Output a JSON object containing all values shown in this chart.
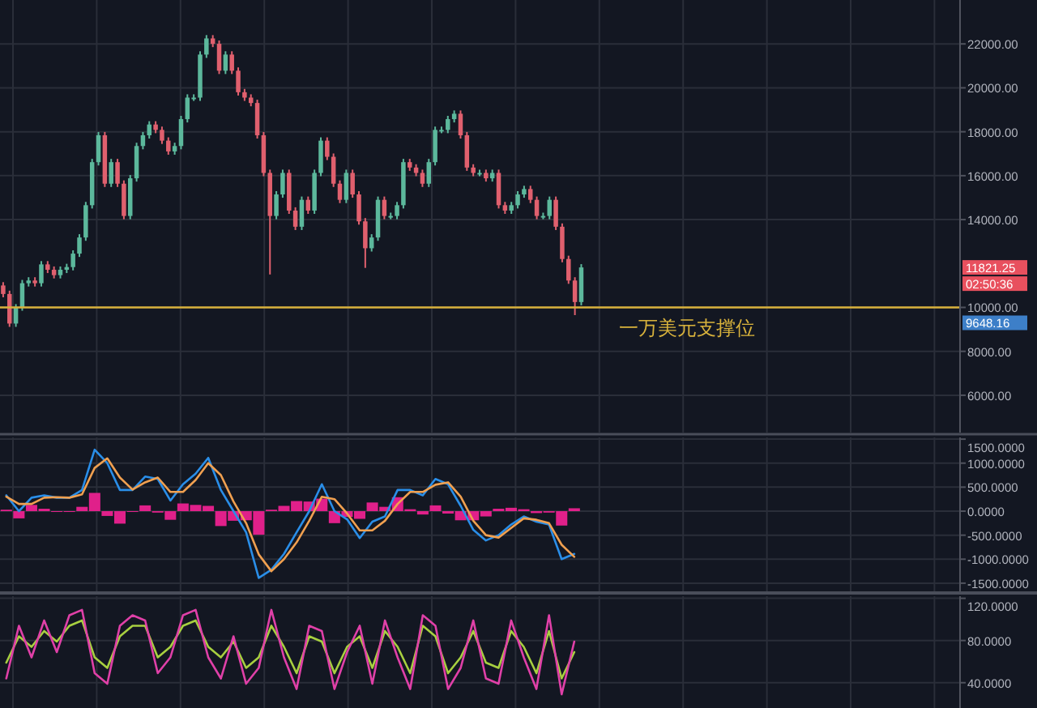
{
  "chart_data": [
    {
      "type": "candlestick",
      "categories": [
        null,
        null,
        null,
        null,
        null,
        null,
        null,
        null,
        null,
        null,
        null,
        null,
        null,
        null,
        null,
        null,
        null,
        null,
        null,
        null,
        null,
        null,
        null,
        null,
        null,
        null,
        null,
        null,
        null,
        null,
        null,
        null,
        null,
        null,
        null,
        null,
        null,
        null,
        null,
        null,
        null,
        null,
        null,
        null,
        null,
        null,
        null,
        null,
        null,
        null,
        null,
        null,
        null,
        null,
        null,
        null,
        null,
        null,
        null,
        null,
        null,
        null,
        null,
        null,
        null,
        null,
        null,
        null,
        null,
        null,
        null,
        null,
        null,
        null,
        null,
        null,
        null,
        null,
        null,
        null,
        null,
        null,
        null,
        null,
        null,
        null,
        null,
        null,
        null,
        null,
        null,
        null,
        null,
        null,
        null,
        null,
        null,
        null,
        null,
        null,
        null,
        null,
        null,
        null,
        null,
        null,
        null,
        null,
        null,
        null,
        null,
        null,
        null,
        null,
        null,
        null,
        null,
        null,
        null,
        null,
        null,
        null,
        null,
        null,
        null,
        null,
        null,
        null,
        null,
        null,
        null,
        null,
        null,
        null,
        null,
        null,
        null,
        null,
        null,
        null,
        null,
        null,
        null,
        null,
        null,
        null,
        null,
        null,
        null,
        null,
        null
      ],
      "ohlc": [
        [
          11000,
          11150,
          10462,
          10612
        ],
        [
          10612,
          10762,
          9115,
          9265
        ],
        [
          9265,
          10150,
          9115,
          10000
        ],
        [
          10000,
          11252,
          9850,
          11102
        ],
        [
          11102,
          11375,
          10952,
          11225
        ],
        [
          11225,
          11375,
          10952,
          11102
        ],
        [
          11102,
          12110,
          10952,
          11960
        ],
        [
          11960,
          12110,
          11565,
          11715
        ],
        [
          11715,
          11865,
          11320,
          11470
        ],
        [
          11470,
          11865,
          11320,
          11715
        ],
        [
          11715,
          11987,
          11565,
          11837
        ],
        [
          11837,
          12600,
          11687,
          12450
        ],
        [
          12450,
          13335,
          12300,
          13185
        ],
        [
          13185,
          14805,
          13035,
          14655
        ],
        [
          14655,
          16765,
          14505,
          16615
        ],
        [
          16615,
          17990,
          16465,
          17840
        ],
        [
          17840,
          17990,
          15485,
          15635
        ],
        [
          15635,
          16765,
          15485,
          16615
        ],
        [
          16615,
          16765,
          15485,
          15635
        ],
        [
          15635,
          15785,
          14015,
          14165
        ],
        [
          14165,
          16030,
          14015,
          15880
        ],
        [
          15880,
          17500,
          15730,
          17350
        ],
        [
          17350,
          17990,
          17200,
          17840
        ],
        [
          17840,
          18480,
          17690,
          18330
        ],
        [
          18330,
          18480,
          17935,
          18085
        ],
        [
          18085,
          18235,
          17445,
          17595
        ],
        [
          17595,
          17745,
          16955,
          17105
        ],
        [
          17105,
          17500,
          16955,
          17350
        ],
        [
          17350,
          18725,
          17200,
          18575
        ],
        [
          18575,
          19705,
          18425,
          19555
        ],
        [
          19555,
          19705,
          19405,
          19555
        ],
        [
          19555,
          21665,
          19405,
          21515
        ],
        [
          21515,
          22400,
          21365,
          22250
        ],
        [
          22250,
          22400,
          21855,
          22005
        ],
        [
          22005,
          22155,
          20630,
          20780
        ],
        [
          20780,
          21665,
          20630,
          21515
        ],
        [
          21515,
          21665,
          20630,
          20780
        ],
        [
          20780,
          20930,
          19650,
          19800
        ],
        [
          19800,
          19950,
          19405,
          19555
        ],
        [
          19555,
          19705,
          19160,
          19310
        ],
        [
          19310,
          19460,
          17690,
          17840
        ],
        [
          17840,
          17990,
          15975,
          16125
        ],
        [
          16125,
          16275,
          11500,
          14165
        ],
        [
          14165,
          15295,
          14015,
          15145
        ],
        [
          15145,
          16275,
          14995,
          16125
        ],
        [
          16125,
          16275,
          14260,
          14410
        ],
        [
          14410,
          14560,
          13525,
          13675
        ],
        [
          13675,
          15050,
          13525,
          14900
        ],
        [
          14900,
          15050,
          14260,
          14410
        ],
        [
          14410,
          16275,
          14260,
          16125
        ],
        [
          16125,
          17745,
          15975,
          17595
        ],
        [
          17595,
          17745,
          16710,
          16860
        ],
        [
          16860,
          17010,
          15485,
          15635
        ],
        [
          15635,
          15785,
          14750,
          14900
        ],
        [
          14900,
          16275,
          14750,
          16125
        ],
        [
          16125,
          16275,
          14995,
          15145
        ],
        [
          15145,
          15295,
          13770,
          13920
        ],
        [
          13920,
          14070,
          11800,
          12695
        ],
        [
          12695,
          13335,
          12545,
          13185
        ],
        [
          13185,
          15050,
          13035,
          14900
        ],
        [
          14900,
          15050,
          14015,
          14165
        ],
        [
          14165,
          14315,
          14015,
          14165
        ],
        [
          14165,
          14805,
          14015,
          14655
        ],
        [
          14655,
          16765,
          14505,
          16615
        ],
        [
          16615,
          16765,
          16220,
          16370
        ],
        [
          16370,
          16520,
          15975,
          16125
        ],
        [
          16125,
          16275,
          15485,
          15635
        ],
        [
          15635,
          16765,
          15485,
          16615
        ],
        [
          16615,
          18235,
          16465,
          18085
        ],
        [
          18085,
          18235,
          17935,
          18085
        ],
        [
          18085,
          18725,
          17935,
          18575
        ],
        [
          18575,
          18970,
          18425,
          18820
        ],
        [
          18820,
          18970,
          17690,
          17840
        ],
        [
          17840,
          17990,
          16220,
          16370
        ],
        [
          16370,
          16520,
          15975,
          16125
        ],
        [
          16125,
          16275,
          15975,
          16125
        ],
        [
          16125,
          16275,
          15730,
          15880
        ],
        [
          15880,
          16275,
          15730,
          16125
        ],
        [
          16125,
          16275,
          14505,
          14655
        ],
        [
          14655,
          14805,
          14260,
          14410
        ],
        [
          14410,
          14805,
          14260,
          14655
        ],
        [
          14655,
          15295,
          14505,
          15145
        ],
        [
          15145,
          15540,
          14995,
          15390
        ],
        [
          15390,
          15540,
          14750,
          14900
        ],
        [
          14900,
          15050,
          14015,
          14165
        ],
        [
          14165,
          14315,
          14015,
          14165
        ],
        [
          14165,
          15050,
          14015,
          14900
        ],
        [
          14900,
          15050,
          13525,
          13675
        ],
        [
          13675,
          13825,
          12055,
          12205
        ],
        [
          12205,
          12355,
          11075,
          11225
        ],
        [
          11225,
          11375,
          9650,
          10245
        ],
        [
          10245,
          11971,
          10095,
          11821
        ],
        null,
        null,
        null,
        null,
        null,
        null,
        null,
        null,
        null,
        null,
        null,
        null,
        null,
        null,
        null,
        null,
        null,
        null,
        null,
        null,
        null,
        null,
        null,
        null,
        null,
        null,
        null,
        null,
        null,
        null,
        null,
        null,
        null,
        null,
        null,
        null,
        null,
        null,
        null,
        null,
        null,
        null,
        null,
        null,
        null,
        null,
        null,
        null,
        null,
        null,
        null,
        null,
        null,
        null,
        null,
        null,
        null,
        null,
        null
      ],
      "ylim": [
        4300,
        24000
      ],
      "yticks": [
        {
          "value": 6000,
          "label": "6000.00"
        },
        {
          "value": 8000,
          "label": "8000.00"
        },
        {
          "value": 10000,
          "label": "10000.00"
        },
        {
          "value": 14000,
          "label": "14000.00"
        },
        {
          "value": 16000,
          "label": "16000.00"
        },
        {
          "value": 18000,
          "label": "18000.00"
        },
        {
          "value": 20000,
          "label": "20000.00"
        },
        {
          "value": 22000,
          "label": "22000.00"
        }
      ],
      "grid": true,
      "tick_labels": "y",
      "ref_lines": [
        {
          "axis": "y",
          "value": 10000,
          "label": "一万美元支撑位",
          "color": "#d8b23c"
        }
      ],
      "annotations": [
        "11821.25",
        "02:50:36",
        "9648.16"
      ]
    },
    {
      "type": "line",
      "categories": [
        null,
        null,
        null,
        null,
        null,
        null,
        null,
        null,
        null,
        null,
        null,
        null,
        null,
        null,
        null,
        null,
        null,
        null,
        null,
        null,
        null,
        null,
        null,
        null,
        null,
        null,
        null,
        null,
        null,
        null,
        null,
        null,
        null,
        null,
        null,
        null,
        null,
        null,
        null,
        null,
        null,
        null,
        null,
        null,
        null,
        null,
        null,
        null,
        null,
        null,
        null,
        null,
        null,
        null,
        null,
        null,
        null,
        null,
        null,
        null,
        null,
        null,
        null,
        null,
        null,
        null,
        null,
        null,
        null,
        null,
        null,
        null,
        null,
        null,
        null,
        null
      ],
      "series": [
        {
          "type": "bar",
          "color": "#e0208a",
          "values": [
            30,
            -150,
            130,
            50,
            -10,
            0,
            90,
            380,
            -100,
            -260,
            -10,
            120,
            -30,
            -180,
            160,
            130,
            110,
            -310,
            -200,
            -190,
            -490,
            30,
            110,
            210,
            200,
            260,
            -250,
            -120,
            -160,
            180,
            90,
            290,
            40,
            -70,
            120,
            -50,
            -190,
            -190,
            -110,
            50,
            70,
            40,
            -40,
            -30,
            -300,
            60,
            null,
            null,
            null,
            null,
            null,
            null,
            null,
            null,
            null,
            null,
            null,
            null,
            null,
            null,
            null,
            null,
            null,
            null,
            null,
            null,
            null,
            null,
            null,
            null,
            null,
            null,
            null,
            null,
            null,
            null
          ]
        },
        {
          "color": "#2a8ee8",
          "values": [
            330,
            0,
            280,
            330,
            280,
            280,
            440,
            1280,
            1000,
            440,
            440,
            720,
            670,
            220,
            560,
            780,
            1110,
            440,
            0,
            -440,
            -1390,
            -1220,
            -890,
            -440,
            0,
            560,
            0,
            -170,
            -560,
            -220,
            -110,
            440,
            440,
            330,
            670,
            560,
            110,
            -390,
            -610,
            -500,
            -280,
            -110,
            -220,
            -280,
            -1000,
            -890,
            null,
            null,
            null,
            null,
            null,
            null,
            null,
            null,
            null,
            null,
            null,
            null,
            null,
            null,
            null,
            null,
            null,
            null,
            null,
            null,
            null,
            null,
            null,
            null,
            null,
            null,
            null,
            null,
            null,
            null
          ]
        },
        {
          "color": "#f0a050",
          "values": [
            300,
            150,
            150,
            280,
            290,
            280,
            350,
            900,
            1100,
            700,
            450,
            600,
            700,
            400,
            400,
            650,
            1000,
            750,
            200,
            -250,
            -900,
            -1250,
            -1000,
            -650,
            -200,
            300,
            250,
            -50,
            -400,
            -400,
            -200,
            150,
            400,
            400,
            550,
            600,
            300,
            -200,
            -500,
            -550,
            -350,
            -150,
            -180,
            -250,
            -700,
            -950,
            null,
            null,
            null,
            null,
            null,
            null,
            null,
            null,
            null,
            null,
            null,
            null,
            null,
            null,
            null,
            null,
            null,
            null,
            null,
            null,
            null,
            null,
            null,
            null,
            null,
            null,
            null,
            null,
            null,
            null
          ]
        }
      ],
      "ylim": [
        -1670,
        1535
      ],
      "yticks": [
        {
          "value": -1500,
          "label": "-1500.0000"
        },
        {
          "value": -1000,
          "label": "-1000.0000"
        },
        {
          "value": -500,
          "label": "-500.0000"
        },
        {
          "value": 0,
          "label": "0.0000"
        },
        {
          "value": 500,
          "label": "500.0000"
        },
        {
          "value": 1000,
          "label": "1000.0000"
        },
        {
          "value": 1500,
          "label": "1500.0000"
        }
      ],
      "grid": true,
      "tick_labels": "y"
    },
    {
      "type": "line",
      "categories": [
        null,
        null,
        null,
        null,
        null,
        null,
        null,
        null,
        null,
        null,
        null,
        null,
        null,
        null,
        null,
        null,
        null,
        null,
        null,
        null,
        null,
        null,
        null,
        null,
        null,
        null,
        null,
        null,
        null,
        null,
        null,
        null,
        null,
        null,
        null,
        null,
        null,
        null,
        null,
        null,
        null,
        null,
        null,
        null,
        null,
        null,
        null,
        null,
        null,
        null,
        null,
        null,
        null,
        null,
        null,
        null,
        null,
        null,
        null,
        null,
        null,
        null,
        null,
        null,
        null,
        null,
        null,
        null,
        null,
        null,
        null,
        null,
        null,
        null,
        null,
        null
      ],
      "series": [
        {
          "color": "#a8d040",
          "values": [
            59,
            84,
            74,
            89,
            79,
            94,
            99,
            64,
            54,
            84,
            94,
            94,
            64,
            74,
            94,
            99,
            74,
            64,
            79,
            54,
            64,
            94,
            74,
            49,
            84,
            79,
            49,
            74,
            84,
            54,
            89,
            74,
            49,
            94,
            84,
            49,
            64,
            89,
            59,
            54,
            89,
            74,
            49,
            89,
            44,
            69,
            null,
            null,
            null,
            null,
            null,
            null,
            null,
            null,
            null,
            null,
            null,
            null,
            null,
            null,
            null,
            null,
            null,
            null,
            null,
            null,
            null,
            null,
            null,
            null,
            null,
            null,
            null,
            null,
            null,
            null
          ]
        },
        {
          "color": "#e040a8",
          "values": [
            44,
            94,
            64,
            99,
            69,
            104,
            109,
            49,
            39,
            94,
            104,
            99,
            49,
            64,
            104,
            109,
            64,
            44,
            84,
            39,
            54,
            109,
            64,
            34,
            94,
            89,
            34,
            69,
            94,
            39,
            99,
            64,
            34,
            104,
            94,
            34,
            54,
            99,
            44,
            39,
            99,
            64,
            34,
            104,
            29,
            79,
            null,
            null,
            null,
            null,
            null,
            null,
            null,
            null,
            null,
            null,
            null,
            null,
            null,
            null,
            null,
            null,
            null,
            null,
            null,
            null,
            null,
            null,
            null,
            null,
            null,
            null,
            null,
            null,
            null,
            null
          ]
        }
      ],
      "ylim": [
        16,
        122
      ],
      "yticks": [
        {
          "value": 40,
          "label": "40.0000"
        },
        {
          "value": 80,
          "label": "80.0000"
        },
        {
          "value": 120,
          "label": "120.0000"
        }
      ],
      "grid": true,
      "tick_labels": "y"
    }
  ]
}
